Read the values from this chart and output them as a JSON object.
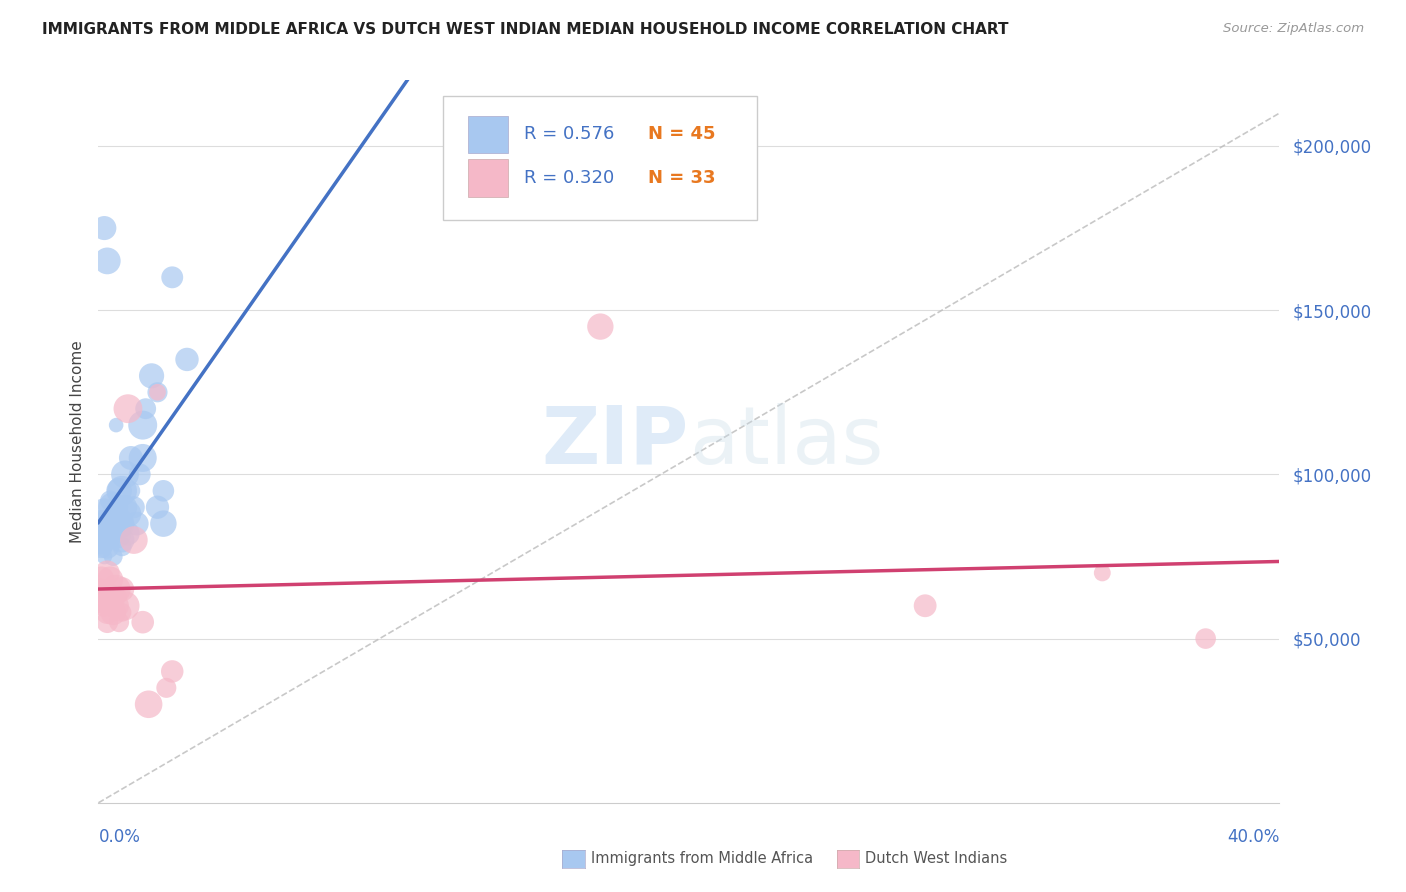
{
  "title": "IMMIGRANTS FROM MIDDLE AFRICA VS DUTCH WEST INDIAN MEDIAN HOUSEHOLD INCOME CORRELATION CHART",
  "source": "Source: ZipAtlas.com",
  "ylabel": "Median Household Income",
  "ylim": [
    0,
    220000
  ],
  "xlim": [
    0.0,
    0.4
  ],
  "watermark": "ZIPatlas",
  "legend1_R": "0.576",
  "legend1_N": "45",
  "legend2_R": "0.320",
  "legend2_N": "33",
  "blue_color": "#A8C8F0",
  "pink_color": "#F5B8C8",
  "blue_line_color": "#4472C4",
  "pink_line_color": "#D04070",
  "dashed_line_color": "#BBBBBB",
  "title_color": "#222222",
  "source_color": "#999999",
  "ytick_color": "#4472C4",
  "xlabel_color": "#4472C4",
  "N_color": "#E87820",
  "blue_scatter": [
    [
      0.001,
      82000
    ],
    [
      0.001,
      80000
    ],
    [
      0.001,
      78000
    ],
    [
      0.001,
      85000
    ],
    [
      0.002,
      88000
    ],
    [
      0.002,
      80000
    ],
    [
      0.002,
      175000
    ],
    [
      0.002,
      75000
    ],
    [
      0.003,
      82000
    ],
    [
      0.003,
      78000
    ],
    [
      0.003,
      165000
    ],
    [
      0.003,
      85000
    ],
    [
      0.004,
      85000
    ],
    [
      0.004,
      80000
    ],
    [
      0.004,
      92000
    ],
    [
      0.005,
      90000
    ],
    [
      0.005,
      75000
    ],
    [
      0.006,
      88000
    ],
    [
      0.006,
      82000
    ],
    [
      0.006,
      115000
    ],
    [
      0.007,
      95000
    ],
    [
      0.007,
      85000
    ],
    [
      0.008,
      78000
    ],
    [
      0.008,
      80000
    ],
    [
      0.008,
      95000
    ],
    [
      0.009,
      85000
    ],
    [
      0.009,
      90000
    ],
    [
      0.009,
      100000
    ],
    [
      0.01,
      88000
    ],
    [
      0.01,
      82000
    ],
    [
      0.011,
      95000
    ],
    [
      0.011,
      105000
    ],
    [
      0.012,
      90000
    ],
    [
      0.013,
      85000
    ],
    [
      0.014,
      100000
    ],
    [
      0.015,
      115000
    ],
    [
      0.015,
      105000
    ],
    [
      0.016,
      120000
    ],
    [
      0.018,
      130000
    ],
    [
      0.02,
      125000
    ],
    [
      0.02,
      90000
    ],
    [
      0.022,
      95000
    ],
    [
      0.022,
      85000
    ],
    [
      0.025,
      160000
    ],
    [
      0.03,
      135000
    ]
  ],
  "pink_scatter": [
    [
      0.001,
      68000
    ],
    [
      0.001,
      65000
    ],
    [
      0.001,
      62000
    ],
    [
      0.002,
      65000
    ],
    [
      0.002,
      62000
    ],
    [
      0.002,
      60000
    ],
    [
      0.003,
      63000
    ],
    [
      0.003,
      70000
    ],
    [
      0.003,
      58000
    ],
    [
      0.003,
      55000
    ],
    [
      0.004,
      65000
    ],
    [
      0.004,
      60000
    ],
    [
      0.004,
      68000
    ],
    [
      0.005,
      62000
    ],
    [
      0.005,
      58000
    ],
    [
      0.006,
      65000
    ],
    [
      0.006,
      60000
    ],
    [
      0.007,
      63000
    ],
    [
      0.007,
      55000
    ],
    [
      0.008,
      65000
    ],
    [
      0.008,
      58000
    ],
    [
      0.009,
      60000
    ],
    [
      0.01,
      120000
    ],
    [
      0.012,
      80000
    ],
    [
      0.015,
      55000
    ],
    [
      0.017,
      30000
    ],
    [
      0.02,
      125000
    ],
    [
      0.023,
      35000
    ],
    [
      0.025,
      40000
    ],
    [
      0.17,
      145000
    ],
    [
      0.28,
      60000
    ],
    [
      0.34,
      70000
    ],
    [
      0.375,
      50000
    ]
  ]
}
